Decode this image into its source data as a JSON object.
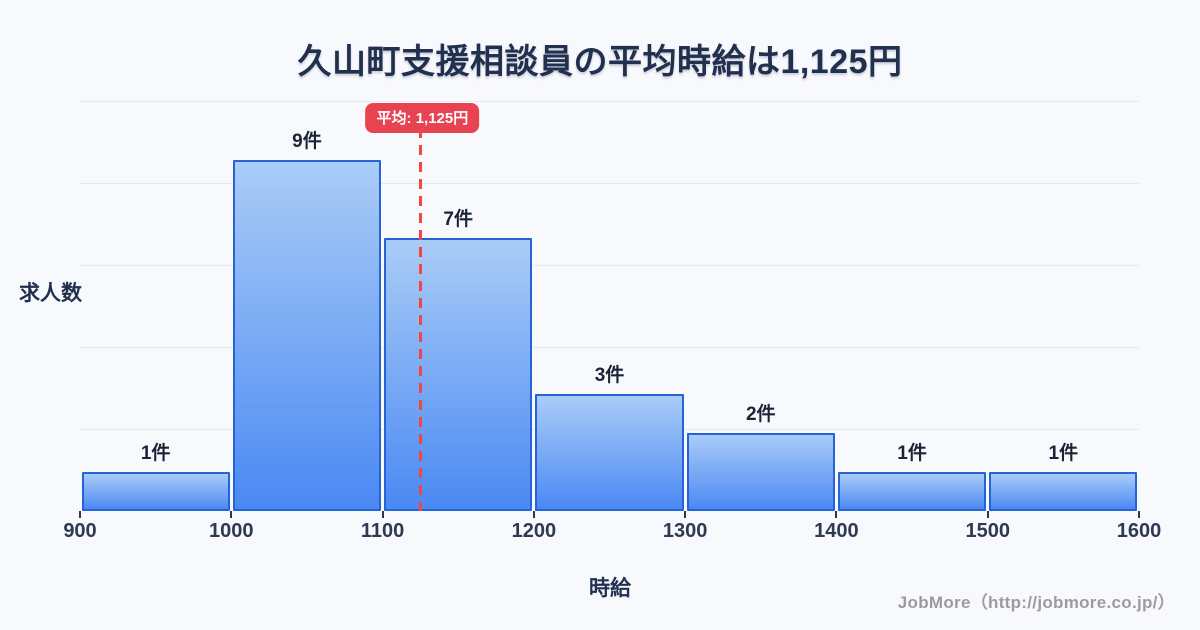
{
  "page": {
    "footer_credit": "JobMore（http://jobmore.co.jp/）"
  },
  "chart_data": {
    "type": "bar",
    "subtype": "histogram",
    "title": "久山町支援相談員の平均時給は1,125円",
    "xlabel": "時給",
    "ylabel": "求人数",
    "x_ticks": [
      "900",
      "1000",
      "1100",
      "1200",
      "1300",
      "1400",
      "1500",
      "1600"
    ],
    "bin_edges": [
      900,
      1000,
      1100,
      1200,
      1300,
      1400,
      1500,
      1600
    ],
    "values": [
      1,
      9,
      7,
      3,
      2,
      1,
      1
    ],
    "bar_labels": [
      "1件",
      "9件",
      "7件",
      "3件",
      "2件",
      "1件",
      "1件"
    ],
    "mean": 1125,
    "mean_label": "平均: 1,125円",
    "x_range": [
      900,
      1600
    ],
    "ylim": [
      0,
      10.5
    ],
    "gridline_count": 5,
    "grid": true,
    "legend": false
  },
  "colors": {
    "background": "#f8f9fc",
    "title_text": "#22304f",
    "grid_line": "#e4e9f3",
    "bar_fill_top": "#aaccf7",
    "bar_fill_bottom": "#4a89f3",
    "bar_border": "#2563d6",
    "count_label": "#1b2437",
    "tick_label": "#2e3a52",
    "axis_label": "#22304f",
    "accent_red": "#e84350",
    "mean_line_red": "#ef4748",
    "badge_text": "#ffffff",
    "footer_text": "#9b9ba1"
  }
}
